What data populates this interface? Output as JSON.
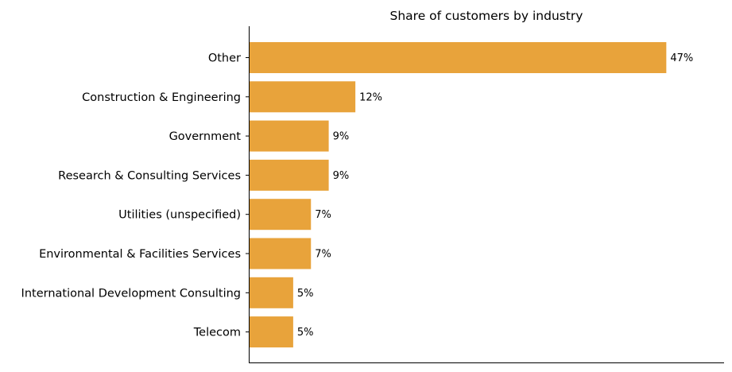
{
  "chart_data": {
    "type": "bar",
    "orientation": "horizontal",
    "title": "Share of customers by industry",
    "xlabel": "",
    "ylabel": "",
    "categories": [
      "Other",
      "Construction & Engineering",
      "Government",
      "Research & Consulting Services",
      "Utilities (unspecified)",
      "Environmental & Facilities Services",
      "International Development Consulting",
      "Telecom"
    ],
    "values": [
      47,
      12,
      9,
      9,
      7,
      7,
      5,
      5
    ],
    "value_labels": [
      "47%",
      "12%",
      "9%",
      "9%",
      "7%",
      "7%",
      "5%",
      "5%"
    ],
    "unit": "%",
    "xlim": [
      0,
      53.5
    ],
    "bar_color": "#E8A33B",
    "grid": false,
    "legend": "none"
  }
}
